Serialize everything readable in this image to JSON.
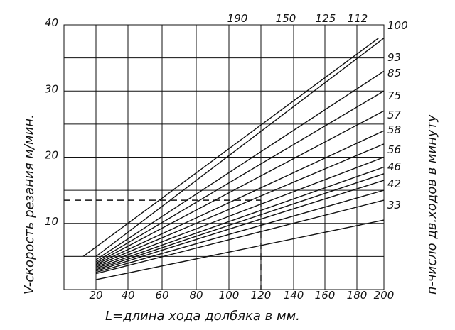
{
  "chart_data": {
    "type": "line",
    "xlabel": "L=длина хода долбяка в мм.",
    "ylabel": "V-скорость резания м/мин.",
    "y2label": "n-число дв.ходов в минуту",
    "x_ticks": [
      "20",
      "40",
      "60",
      "80",
      "100",
      "120",
      "140",
      "160",
      "180",
      "200"
    ],
    "y_ticks": [
      "10",
      "20",
      "30",
      "40"
    ],
    "ylim": [
      0,
      40
    ],
    "grid": true,
    "series": [
      {
        "label": "190",
        "x": [
          16,
          196
        ],
        "y": [
          5,
          38
        ]
      },
      {
        "label": "150",
        "x": [
          20,
          200
        ],
        "y": [
          5,
          38
        ]
      },
      {
        "label": "125",
        "x": [
          20,
          200
        ],
        "y": [
          4.5,
          33
        ]
      },
      {
        "label": "112",
        "x": [
          20,
          200
        ],
        "y": [
          4.2,
          30
        ]
      },
      {
        "label": "100",
        "x": [
          20,
          200
        ],
        "y": [
          4,
          27
        ]
      },
      {
        "label": "93",
        "x": [
          20,
          200
        ],
        "y": [
          3.8,
          24
        ]
      },
      {
        "label": "85",
        "x": [
          20,
          200
        ],
        "y": [
          3.6,
          22
        ]
      },
      {
        "label": "75",
        "x": [
          20,
          200
        ],
        "y": [
          3.4,
          20
        ]
      },
      {
        "label": "57",
        "x": [
          20,
          200
        ],
        "y": [
          3.2,
          18.5
        ]
      },
      {
        "label": "58",
        "x": [
          20,
          200
        ],
        "y": [
          3,
          17.5
        ]
      },
      {
        "label": "56",
        "x": [
          20,
          200
        ],
        "y": [
          2.8,
          16.5
        ]
      },
      {
        "label": "46",
        "x": [
          20,
          200
        ],
        "y": [
          2.6,
          15
        ]
      },
      {
        "label": "42",
        "x": [
          20,
          200
        ],
        "y": [
          2.4,
          13.5
        ]
      },
      {
        "label": "33",
        "x": [
          20,
          200
        ],
        "y": [
          1.5,
          10.5
        ]
      }
    ],
    "right_labels": [
      "100",
      "93",
      "85",
      "75",
      "57",
      "58",
      "56",
      "46",
      "42",
      "33"
    ],
    "top_labels": [
      "190",
      "150",
      "125",
      "112"
    ],
    "guide": {
      "x": 120,
      "y": 13.5
    }
  }
}
